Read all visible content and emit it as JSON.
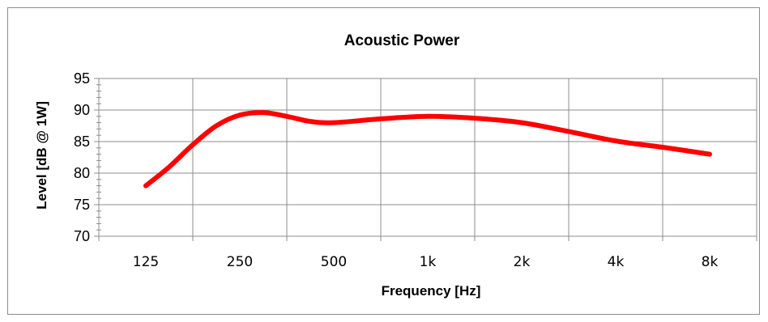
{
  "chart_data": {
    "type": "line",
    "title": "Acoustic Power",
    "xlabel": "Frequency [Hz]",
    "ylabel": "Level [dB @ 1W]",
    "categories": [
      "125",
      "250",
      "500",
      "1k",
      "2k",
      "4k",
      "8k"
    ],
    "ylim": [
      70,
      95
    ],
    "yticks": [
      70,
      75,
      80,
      85,
      90,
      95
    ],
    "grid": true,
    "legend": "none",
    "series": [
      {
        "color": "#ff0000",
        "points": [
          {
            "x": 0.0,
            "y": 78.0
          },
          {
            "x": 0.25,
            "y": 81.0
          },
          {
            "x": 0.5,
            "y": 84.5
          },
          {
            "x": 0.75,
            "y": 87.5
          },
          {
            "x": 1.0,
            "y": 89.2
          },
          {
            "x": 1.25,
            "y": 89.6
          },
          {
            "x": 1.5,
            "y": 89.0
          },
          {
            "x": 1.75,
            "y": 88.2
          },
          {
            "x": 2.0,
            "y": 88.0
          },
          {
            "x": 2.5,
            "y": 88.6
          },
          {
            "x": 3.0,
            "y": 89.0
          },
          {
            "x": 3.5,
            "y": 88.7
          },
          {
            "x": 4.0,
            "y": 88.0
          },
          {
            "x": 4.5,
            "y": 86.6
          },
          {
            "x": 5.0,
            "y": 85.1
          },
          {
            "x": 5.5,
            "y": 84.1
          },
          {
            "x": 6.0,
            "y": 83.0
          }
        ]
      }
    ]
  }
}
